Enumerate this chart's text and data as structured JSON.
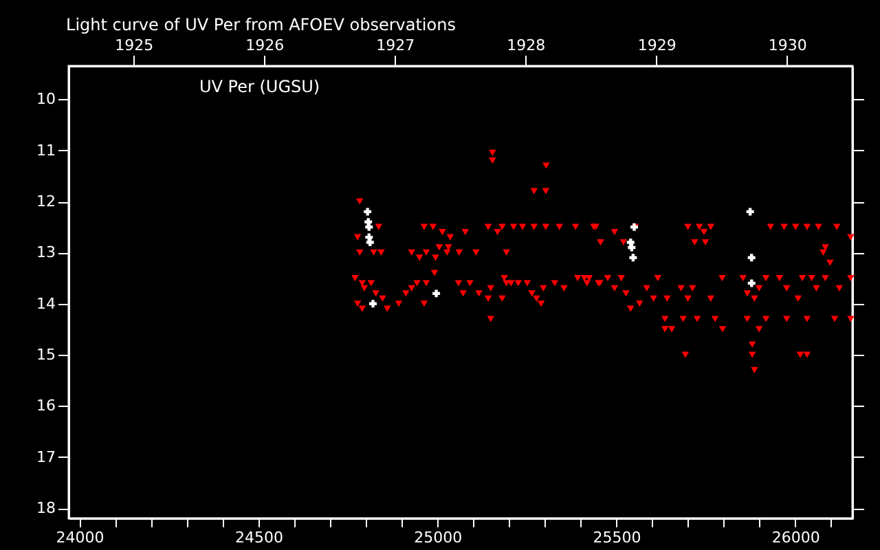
{
  "chart_data": {
    "type": "scatter",
    "title": "Light curve of UV Per from AFOEV observations",
    "annotations": [
      "UV Per (UGSU)"
    ],
    "xlim": [
      23970,
      26160
    ],
    "ylim": [
      18.2,
      9.35
    ],
    "xticks": [
      24000,
      {
        "value": 24100,
        "label": null
      },
      {
        "value": 24200,
        "label": null
      },
      {
        "value": 24300,
        "label": null
      },
      {
        "value": 24400,
        "label": null
      },
      24500,
      {
        "value": 24600,
        "label": null
      },
      {
        "value": 24700,
        "label": null
      },
      {
        "value": 24800,
        "label": null
      },
      {
        "value": 24900,
        "label": null
      },
      25000,
      {
        "value": 25100,
        "label": null
      },
      {
        "value": 25200,
        "label": null
      },
      {
        "value": 25300,
        "label": null
      },
      {
        "value": 25400,
        "label": null
      },
      25500,
      {
        "value": 25600,
        "label": null
      },
      {
        "value": 25700,
        "label": null
      },
      {
        "value": 25800,
        "label": null
      },
      {
        "value": 25900,
        "label": null
      },
      26000,
      {
        "value": 26100,
        "label": null
      }
    ],
    "x2lim": [
      "1924-07-04",
      "1930-07-03"
    ],
    "x2ticks": [
      "1925",
      "1926",
      "1927",
      "1928",
      "1929",
      "1930"
    ],
    "yticks": [
      10,
      11,
      12,
      13,
      14,
      15,
      16,
      17,
      18
    ],
    "grid": false,
    "series": [
      {
        "color": "#ff0000",
        "marker": "triangle",
        "x": [
          24783,
          24777,
          24836,
          24783,
          24822,
          24843,
          24770,
          24790,
          24815,
          24796,
          24828,
          24847,
          24777,
          24790,
          24860,
          24892,
          24912,
          24928,
          24943,
          24969,
          24963,
          24992,
          24928,
          24950,
          24969,
          24963,
          24988,
          25014,
          25036,
          25005,
          25031,
          24995,
          25027,
          25061,
          25108,
          25078,
          25142,
          25168,
          25181,
          25213,
          25238,
          25270,
          25303,
          25341,
          25386,
          25443,
          25456,
          25193,
          25270,
          25303,
          25154,
          25154,
          25304,
          25059,
          25091,
          25072,
          25116,
          25149,
          25142,
          25181,
          25187,
          25193,
          25149,
          25206,
          25226,
          25251,
          25264,
          25277,
          25290,
          25296,
          25328,
          25354,
          25392,
          25424,
          25454,
          25437,
          25495,
          25456,
          25520,
          25553,
          25700,
          25732,
          25764,
          25745,
          25719,
          25749,
          25931,
          25969,
          26001,
          26033,
          26065,
          26116,
          25411,
          25418,
          25450,
          25476,
          25514,
          25495,
          25527,
          25540,
          25565,
          25585,
          25616,
          25604,
          25642,
          25636,
          25687,
          25726,
          25636,
          25655,
          25693,
          25681,
          25713,
          25700,
          25764,
          25796,
          25776,
          25797,
          25854,
          25866,
          25866,
          25886,
          25899,
          25918,
          25880,
          25880,
          25886,
          25899,
          25918,
          25956,
          25976,
          26008,
          26020,
          26046,
          26059,
          26084,
          26123,
          25976,
          26033,
          26110,
          26155,
          26014,
          26033,
          26155,
          26155,
          26084,
          26078,
          26097
        ],
        "values": [
          12.0,
          12.7,
          12.5,
          13.0,
          13.0,
          13.0,
          13.5,
          13.6,
          13.6,
          13.7,
          13.8,
          13.9,
          14.0,
          14.1,
          14.1,
          14.0,
          13.8,
          13.7,
          13.6,
          13.6,
          14.0,
          13.4,
          13.0,
          13.1,
          13.0,
          12.5,
          12.5,
          12.6,
          12.7,
          12.9,
          12.9,
          13.1,
          13.0,
          13.0,
          13.0,
          12.6,
          12.5,
          12.6,
          12.5,
          12.5,
          12.5,
          12.5,
          12.5,
          12.5,
          12.5,
          12.5,
          12.8,
          13.0,
          11.8,
          11.8,
          11.05,
          11.2,
          11.3,
          13.6,
          13.6,
          13.8,
          13.8,
          13.7,
          13.9,
          13.9,
          13.5,
          13.6,
          14.3,
          13.6,
          13.6,
          13.6,
          13.8,
          13.9,
          14.0,
          13.7,
          13.6,
          13.7,
          13.5,
          13.5,
          13.6,
          12.5,
          12.6,
          12.8,
          12.8,
          12.5,
          12.5,
          12.5,
          12.5,
          12.6,
          12.8,
          12.8,
          12.5,
          12.5,
          12.5,
          12.5,
          12.5,
          12.5,
          13.5,
          13.6,
          13.6,
          13.5,
          13.5,
          13.7,
          13.8,
          14.1,
          14.0,
          13.7,
          13.5,
          13.9,
          13.9,
          14.3,
          14.3,
          14.3,
          14.5,
          14.5,
          15.0,
          13.7,
          13.7,
          13.9,
          13.9,
          13.5,
          14.3,
          14.5,
          13.5,
          13.8,
          14.3,
          13.9,
          13.7,
          13.5,
          14.8,
          15.0,
          15.3,
          14.5,
          14.3,
          13.5,
          13.7,
          13.9,
          13.5,
          13.5,
          13.7,
          13.5,
          13.7,
          14.3,
          14.3,
          14.3,
          14.3,
          15.0,
          15.0,
          13.5,
          12.7,
          12.9,
          13.0,
          13.2
        ]
      },
      {
        "color": "#ffffff",
        "marker": "cross",
        "x": [
          24805,
          24807,
          24809,
          24809,
          24812,
          24820,
          24997,
          25550,
          25540,
          25543,
          25547,
          25874,
          25878,
          25878
        ],
        "values": [
          12.2,
          12.4,
          12.5,
          12.7,
          12.8,
          14.0,
          13.8,
          12.5,
          12.8,
          12.9,
          13.1,
          12.2,
          13.1,
          13.6
        ]
      }
    ]
  }
}
